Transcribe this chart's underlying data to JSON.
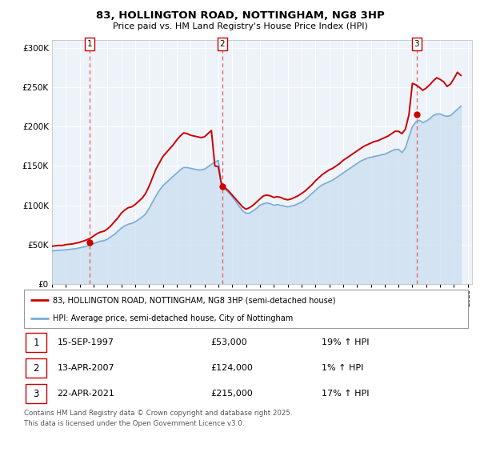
{
  "title1": "83, HOLLINGTON ROAD, NOTTINGHAM, NG8 3HP",
  "title2": "Price paid vs. HM Land Registry's House Price Index (HPI)",
  "background_color": "#ffffff",
  "plot_bg_color": "#eef3fa",
  "grid_color": "#ffffff",
  "house_color": "#cc0000",
  "hpi_color": "#7aadd4",
  "hpi_fill_color": "#c8ddf0",
  "sale_marker_color": "#cc0000",
  "dashed_line_color": "#e06060",
  "legend_house": "83, HOLLINGTON ROAD, NOTTINGHAM, NG8 3HP (semi-detached house)",
  "legend_hpi": "HPI: Average price, semi-detached house, City of Nottingham",
  "sales": [
    {
      "num": 1,
      "date_label": "15-SEP-1997",
      "price_label": "£53,000",
      "pct_label": "19% ↑ HPI",
      "year": 1997.71,
      "price": 53000
    },
    {
      "num": 2,
      "date_label": "13-APR-2007",
      "price_label": "£124,000",
      "pct_label": "1% ↑ HPI",
      "year": 2007.28,
      "price": 124000
    },
    {
      "num": 3,
      "date_label": "22-APR-2021",
      "price_label": "£215,000",
      "pct_label": "17% ↑ HPI",
      "year": 2021.31,
      "price": 215000
    }
  ],
  "footer": "Contains HM Land Registry data © Crown copyright and database right 2025.\nThis data is licensed under the Open Government Licence v3.0.",
  "ylim": [
    0,
    310000
  ],
  "yticks": [
    0,
    50000,
    100000,
    150000,
    200000,
    250000,
    300000
  ],
  "ytick_labels": [
    "£0",
    "£50K",
    "£100K",
    "£150K",
    "£200K",
    "£250K",
    "£300K"
  ],
  "hpi_data": {
    "years": [
      1995.0,
      1995.25,
      1995.5,
      1995.75,
      1996.0,
      1996.25,
      1996.5,
      1996.75,
      1997.0,
      1997.25,
      1997.5,
      1997.75,
      1998.0,
      1998.25,
      1998.5,
      1998.75,
      1999.0,
      1999.25,
      1999.5,
      1999.75,
      2000.0,
      2000.25,
      2000.5,
      2000.75,
      2001.0,
      2001.25,
      2001.5,
      2001.75,
      2002.0,
      2002.25,
      2002.5,
      2002.75,
      2003.0,
      2003.25,
      2003.5,
      2003.75,
      2004.0,
      2004.25,
      2004.5,
      2004.75,
      2005.0,
      2005.25,
      2005.5,
      2005.75,
      2006.0,
      2006.25,
      2006.5,
      2006.75,
      2007.0,
      2007.25,
      2007.5,
      2007.75,
      2008.0,
      2008.25,
      2008.5,
      2008.75,
      2009.0,
      2009.25,
      2009.5,
      2009.75,
      2010.0,
      2010.25,
      2010.5,
      2010.75,
      2011.0,
      2011.25,
      2011.5,
      2011.75,
      2012.0,
      2012.25,
      2012.5,
      2012.75,
      2013.0,
      2013.25,
      2013.5,
      2013.75,
      2014.0,
      2014.25,
      2014.5,
      2014.75,
      2015.0,
      2015.25,
      2015.5,
      2015.75,
      2016.0,
      2016.25,
      2016.5,
      2016.75,
      2017.0,
      2017.25,
      2017.5,
      2017.75,
      2018.0,
      2018.25,
      2018.5,
      2018.75,
      2019.0,
      2019.25,
      2019.5,
      2019.75,
      2020.0,
      2020.25,
      2020.5,
      2020.75,
      2021.0,
      2021.25,
      2021.5,
      2021.75,
      2022.0,
      2022.25,
      2022.5,
      2022.75,
      2023.0,
      2023.25,
      2023.5,
      2023.75,
      2024.0,
      2024.25,
      2024.5
    ],
    "values": [
      42000,
      42500,
      43000,
      43000,
      43500,
      44000,
      44500,
      45000,
      46000,
      47000,
      48000,
      49500,
      51000,
      53000,
      54500,
      55000,
      57000,
      60000,
      63000,
      67000,
      71000,
      74000,
      76000,
      77000,
      79000,
      82000,
      85000,
      89000,
      96000,
      104000,
      112000,
      119000,
      125000,
      129000,
      133000,
      137000,
      141000,
      145000,
      148000,
      148000,
      147000,
      146000,
      145000,
      145000,
      146000,
      149000,
      152000,
      155000,
      157000,
      122000,
      120000,
      116000,
      111000,
      105000,
      99000,
      93000,
      90000,
      90000,
      93000,
      96000,
      100000,
      102000,
      103000,
      102000,
      100000,
      101000,
      100000,
      99000,
      98000,
      99000,
      100000,
      102000,
      104000,
      107000,
      111000,
      115000,
      119000,
      123000,
      126000,
      128000,
      130000,
      132000,
      135000,
      138000,
      141000,
      144000,
      147000,
      150000,
      153000,
      156000,
      158000,
      160000,
      161000,
      162000,
      163000,
      164000,
      165000,
      167000,
      169000,
      171000,
      171000,
      167000,
      173000,
      187000,
      200000,
      206000,
      208000,
      205000,
      207000,
      210000,
      214000,
      216000,
      216000,
      214000,
      213000,
      214000,
      218000,
      222000,
      226000
    ]
  },
  "house_data": {
    "years": [
      1995.0,
      1995.25,
      1995.5,
      1995.75,
      1996.0,
      1996.25,
      1996.5,
      1996.75,
      1997.0,
      1997.25,
      1997.5,
      1997.75,
      1998.0,
      1998.25,
      1998.5,
      1998.75,
      1999.0,
      1999.25,
      1999.5,
      1999.75,
      2000.0,
      2000.25,
      2000.5,
      2000.75,
      2001.0,
      2001.25,
      2001.5,
      2001.75,
      2002.0,
      2002.25,
      2002.5,
      2002.75,
      2003.0,
      2003.25,
      2003.5,
      2003.75,
      2004.0,
      2004.25,
      2004.5,
      2004.75,
      2005.0,
      2005.25,
      2005.5,
      2005.75,
      2006.0,
      2006.25,
      2006.5,
      2006.75,
      2007.0,
      2007.25,
      2007.5,
      2007.75,
      2008.0,
      2008.25,
      2008.5,
      2008.75,
      2009.0,
      2009.25,
      2009.5,
      2009.75,
      2010.0,
      2010.25,
      2010.5,
      2010.75,
      2011.0,
      2011.25,
      2011.5,
      2011.75,
      2012.0,
      2012.25,
      2012.5,
      2012.75,
      2013.0,
      2013.25,
      2013.5,
      2013.75,
      2014.0,
      2014.25,
      2014.5,
      2014.75,
      2015.0,
      2015.25,
      2015.5,
      2015.75,
      2016.0,
      2016.25,
      2016.5,
      2016.75,
      2017.0,
      2017.25,
      2017.5,
      2017.75,
      2018.0,
      2018.25,
      2018.5,
      2018.75,
      2019.0,
      2019.25,
      2019.5,
      2019.75,
      2020.0,
      2020.25,
      2020.5,
      2020.75,
      2021.0,
      2021.25,
      2021.5,
      2021.75,
      2022.0,
      2022.25,
      2022.5,
      2022.75,
      2023.0,
      2023.25,
      2023.5,
      2023.75,
      2024.0,
      2024.25,
      2024.5
    ],
    "values": [
      48000,
      48500,
      49000,
      49000,
      50000,
      50500,
      51000,
      52000,
      53000,
      54500,
      56000,
      58000,
      61000,
      64000,
      66000,
      67000,
      70000,
      74000,
      79000,
      84000,
      90000,
      94000,
      97000,
      98000,
      101000,
      105000,
      109000,
      115000,
      124000,
      135000,
      146000,
      154000,
      162000,
      167000,
      172000,
      177000,
      183000,
      188000,
      192000,
      191000,
      189000,
      188000,
      187000,
      186000,
      187000,
      191000,
      195000,
      150000,
      149000,
      124000,
      122000,
      118000,
      113000,
      108000,
      103000,
      98000,
      95000,
      97000,
      100000,
      104000,
      108000,
      112000,
      113000,
      112000,
      110000,
      111000,
      110000,
      108000,
      107000,
      108000,
      110000,
      112000,
      115000,
      118000,
      122000,
      126000,
      131000,
      135000,
      139000,
      142000,
      145000,
      147000,
      150000,
      153000,
      157000,
      160000,
      163000,
      166000,
      169000,
      172000,
      175000,
      177000,
      179000,
      181000,
      182000,
      184000,
      186000,
      188000,
      191000,
      194000,
      194000,
      191000,
      197000,
      215000,
      255000,
      253000,
      250000,
      246000,
      249000,
      253000,
      258000,
      262000,
      260000,
      257000,
      251000,
      254000,
      261000,
      269000,
      265000
    ]
  }
}
